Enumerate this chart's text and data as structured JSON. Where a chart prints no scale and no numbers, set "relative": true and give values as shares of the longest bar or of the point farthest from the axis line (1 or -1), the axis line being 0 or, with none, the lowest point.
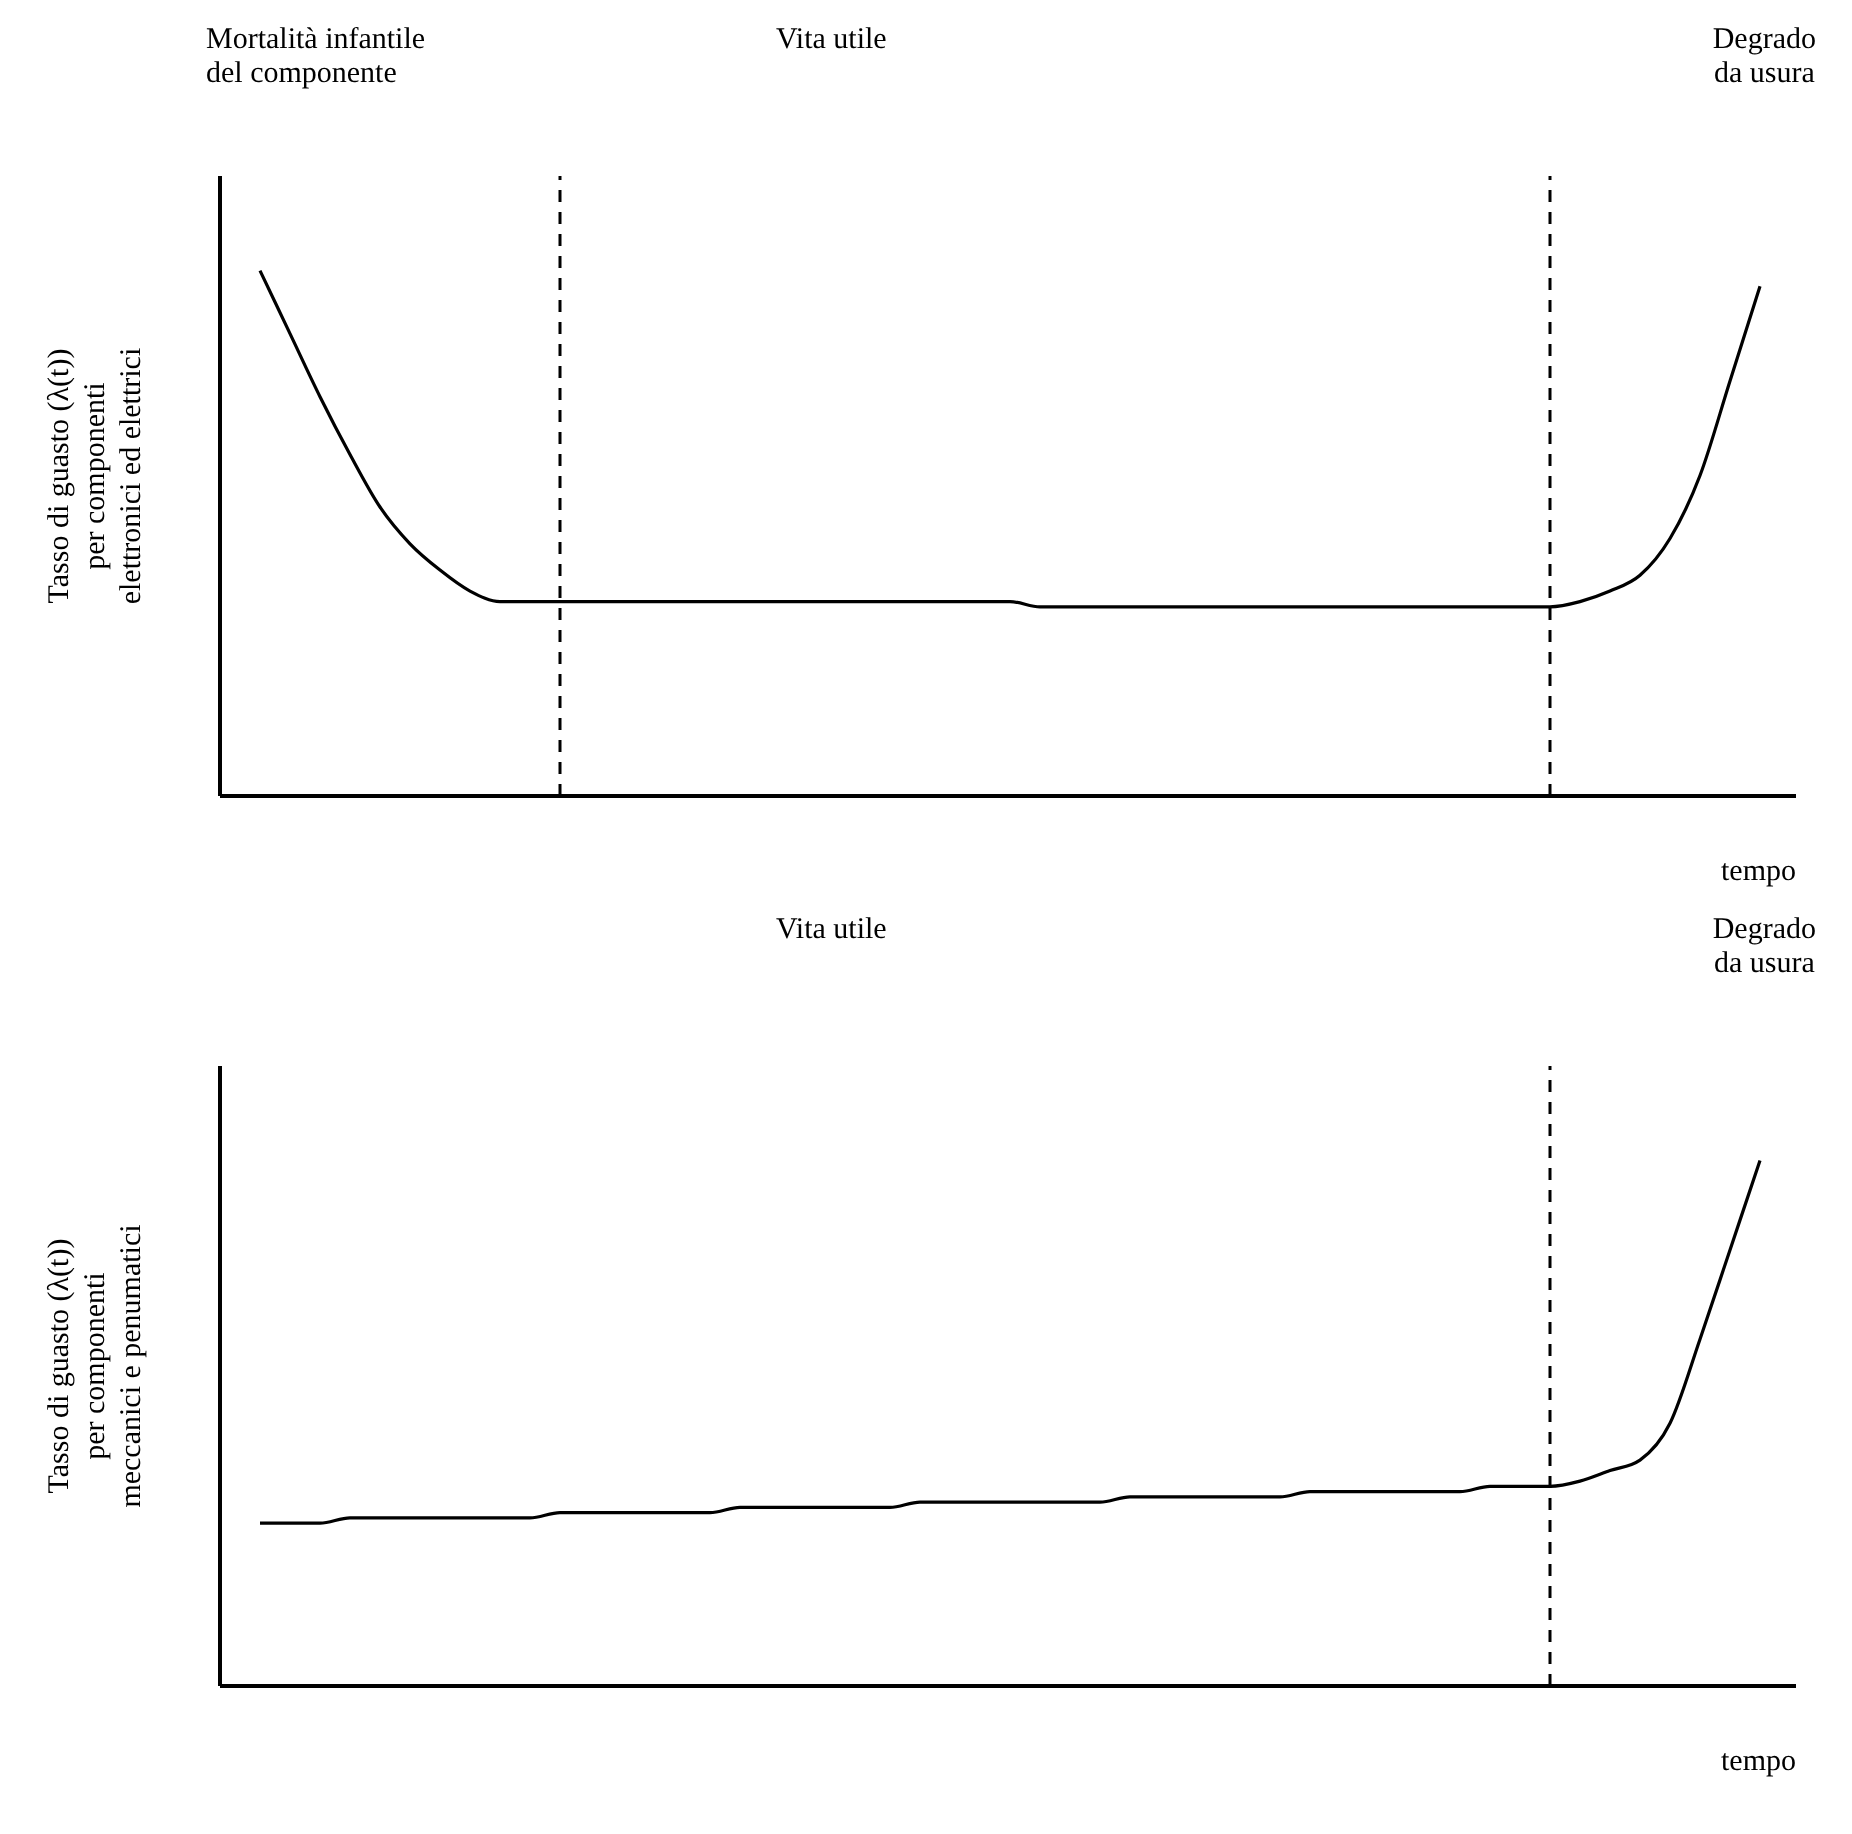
{
  "chart_data": [
    {
      "type": "line",
      "relative": true,
      "ylabel": "Tasso di guasto (λ(t))\nper componenti\nelettronici ed elettrici",
      "xlabel": "tempo",
      "annotations": [
        "Mortalità infantile\ndel componente",
        "Vita utile",
        "Degrado\nda usura"
      ],
      "marker": "none",
      "categories": [
        null,
        null,
        null,
        null,
        null,
        null,
        null,
        null,
        null,
        null,
        null,
        null,
        null,
        null,
        null,
        null,
        null,
        null,
        null,
        null,
        null,
        null,
        null,
        null,
        null,
        null,
        null,
        null,
        null,
        null,
        null,
        null,
        null,
        null,
        null,
        null,
        null,
        null,
        null,
        null,
        null,
        null,
        null,
        null,
        null,
        null,
        null,
        null,
        null,
        null,
        null
      ],
      "series": [
        {
          "color": "#000000",
          "values": [
            1,
            0.88,
            0.76,
            0.65,
            0.55,
            0.48,
            0.43,
            0.39,
            0.37,
            0.37,
            0.37,
            0.37,
            0.37,
            0.37,
            0.37,
            0.37,
            0.37,
            0.37,
            0.37,
            0.37,
            0.37,
            0.37,
            0.37,
            0.37,
            0.37,
            0.37,
            0.36,
            0.36,
            0.36,
            0.36,
            0.36,
            0.36,
            0.36,
            0.36,
            0.36,
            0.36,
            0.36,
            0.36,
            0.36,
            0.36,
            0.36,
            0.36,
            0.36,
            0.36,
            0.37,
            0.39,
            0.42,
            0.49,
            0.61,
            0.79,
            0.97
          ]
        }
      ]
    },
    {
      "type": "line",
      "relative": true,
      "ylabel": "Tasso di guasto (λ(t))\nper componenti\nmeccanici e penumatici",
      "xlabel": "tempo",
      "annotations": [
        "Vita utile",
        "Degrado\nda usura"
      ],
      "marker": "none",
      "categories": [
        null,
        null,
        null,
        null,
        null,
        null,
        null,
        null,
        null,
        null,
        null,
        null,
        null,
        null,
        null,
        null,
        null,
        null,
        null,
        null,
        null,
        null,
        null,
        null,
        null,
        null,
        null,
        null,
        null,
        null,
        null,
        null,
        null,
        null,
        null,
        null,
        null,
        null,
        null,
        null,
        null,
        null,
        null,
        null,
        null,
        null,
        null,
        null,
        null,
        null,
        null
      ],
      "series": [
        {
          "color": "#000000",
          "values": [
            0.31,
            0.31,
            0.31,
            0.32,
            0.32,
            0.32,
            0.32,
            0.32,
            0.32,
            0.32,
            0.33,
            0.33,
            0.33,
            0.33,
            0.33,
            0.33,
            0.34,
            0.34,
            0.34,
            0.34,
            0.34,
            0.34,
            0.35,
            0.35,
            0.35,
            0.35,
            0.35,
            0.35,
            0.35,
            0.36,
            0.36,
            0.36,
            0.36,
            0.36,
            0.36,
            0.37,
            0.37,
            0.37,
            0.37,
            0.37,
            0.37,
            0.38,
            0.38,
            0.38,
            0.39,
            0.41,
            0.43,
            0.5,
            0.66,
            0.83,
            1
          ]
        }
      ]
    }
  ]
}
